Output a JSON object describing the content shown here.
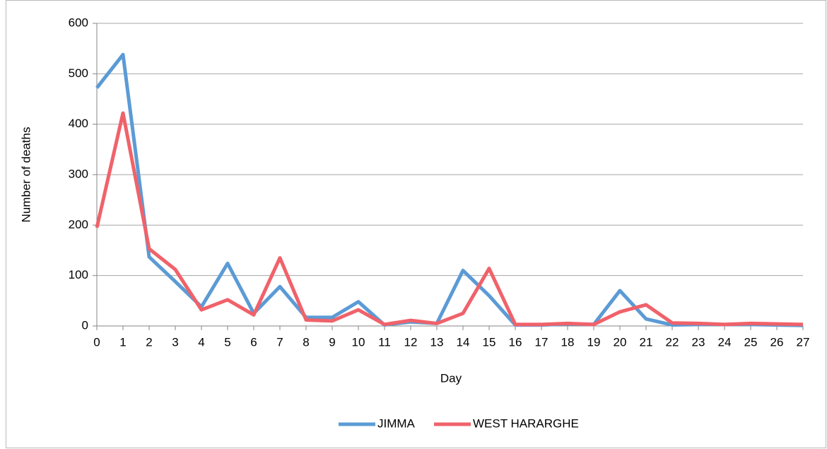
{
  "chart_data": {
    "type": "line",
    "xlabel": "Day",
    "ylabel": "Number of deaths",
    "categories": [
      "0",
      "1",
      "2",
      "3",
      "4",
      "5",
      "6",
      "7",
      "8",
      "9",
      "10",
      "11",
      "12",
      "13",
      "14",
      "15",
      "16",
      "17",
      "18",
      "19",
      "20",
      "21",
      "22",
      "23",
      "24",
      "25",
      "26",
      "27"
    ],
    "series": [
      {
        "name": "JIMMA",
        "color": "#5b9bd5",
        "values": [
          472,
          538,
          137,
          88,
          38,
          124,
          25,
          78,
          17,
          17,
          48,
          2,
          8,
          5,
          110,
          60,
          2,
          2,
          4,
          3,
          70,
          14,
          2,
          3,
          3,
          3,
          2,
          1
        ]
      },
      {
        "name": "WEST HARARGHE",
        "color": "#f0626a",
        "values": [
          195,
          422,
          153,
          112,
          32,
          52,
          22,
          135,
          12,
          10,
          32,
          3,
          11,
          5,
          25,
          114,
          3,
          3,
          5,
          3,
          28,
          42,
          6,
          5,
          3,
          5,
          4,
          3
        ]
      }
    ],
    "ylim": [
      0,
      600
    ],
    "yticks": [
      0,
      100,
      200,
      300,
      400,
      500,
      600
    ],
    "grid": true,
    "legend": "bottom"
  }
}
